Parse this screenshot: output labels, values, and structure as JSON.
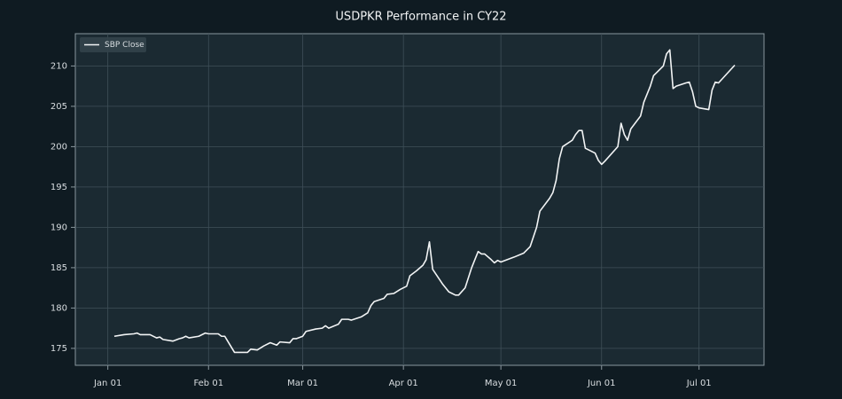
{
  "chart_data": {
    "type": "line",
    "title": "USDPKR Performance in CY22",
    "x": [
      "01-03",
      "01-06",
      "01-09",
      "01-10",
      "01-11",
      "01-14",
      "01-16",
      "01-17",
      "01-18",
      "01-21",
      "01-23",
      "01-24",
      "01-25",
      "01-26",
      "01-29",
      "01-31",
      "02-01",
      "02-04",
      "02-05",
      "02-06",
      "02-09",
      "02-13",
      "02-14",
      "02-16",
      "02-18",
      "02-20",
      "02-22",
      "02-23",
      "02-26",
      "02-27",
      "02-28",
      "03-01",
      "03-02",
      "03-05",
      "03-07",
      "03-08",
      "03-09",
      "03-12",
      "03-13",
      "03-15",
      "03-16",
      "03-19",
      "03-21",
      "03-22",
      "03-23",
      "03-26",
      "03-27",
      "03-29",
      "03-31",
      "04-02",
      "04-03",
      "04-05",
      "04-07",
      "04-08",
      "04-09",
      "04-10",
      "04-13",
      "04-15",
      "04-17",
      "04-18",
      "04-20",
      "04-22",
      "04-24",
      "04-25",
      "04-26",
      "04-28",
      "04-29",
      "04-30",
      "05-01",
      "05-05",
      "05-08",
      "05-10",
      "05-12",
      "05-13",
      "05-16",
      "05-17",
      "05-18",
      "05-19",
      "05-20",
      "05-23",
      "05-24",
      "05-25",
      "05-26",
      "05-27",
      "05-30",
      "05-31",
      "06-01",
      "06-02",
      "06-06",
      "06-07",
      "06-08",
      "06-09",
      "06-10",
      "06-13",
      "06-14",
      "06-16",
      "06-17",
      "06-20",
      "06-21",
      "06-22",
      "06-23",
      "06-24",
      "06-27",
      "06-28",
      "06-29",
      "06-30",
      "07-01",
      "07-04",
      "07-05",
      "07-06",
      "07-07",
      "07-12"
    ],
    "series": [
      {
        "name": "SBP Close",
        "color": "#f2f4f5",
        "values": [
          176.5,
          176.7,
          176.8,
          176.9,
          176.7,
          176.7,
          176.3,
          176.4,
          176.1,
          175.9,
          176.2,
          176.3,
          176.5,
          176.3,
          176.5,
          176.9,
          176.8,
          176.8,
          176.5,
          176.5,
          174.5,
          174.5,
          174.9,
          174.8,
          175.3,
          175.7,
          175.4,
          175.8,
          175.7,
          176.2,
          176.2,
          176.5,
          177.1,
          177.4,
          177.5,
          177.8,
          177.5,
          178.0,
          178.6,
          178.6,
          178.5,
          178.9,
          179.4,
          180.3,
          180.8,
          181.2,
          181.7,
          181.8,
          182.3,
          182.7,
          184.0,
          184.6,
          185.3,
          186.0,
          188.2,
          184.8,
          183.0,
          182.0,
          181.6,
          181.6,
          182.5,
          185.0,
          187.0,
          186.7,
          186.7,
          186.0,
          185.6,
          185.9,
          185.7,
          186.3,
          186.8,
          187.6,
          190.0,
          192.0,
          193.6,
          194.3,
          195.8,
          198.5,
          200.0,
          200.8,
          201.5,
          202.0,
          202.0,
          199.8,
          199.2,
          198.3,
          197.8,
          198.2,
          200.0,
          202.9,
          201.5,
          200.8,
          202.2,
          203.8,
          205.5,
          207.5,
          208.8,
          210.0,
          211.5,
          212.0,
          207.2,
          207.5,
          207.9,
          208.0,
          206.8,
          205.0,
          204.8,
          204.6,
          207.0,
          208.0,
          207.9,
          210.1
        ]
      }
    ],
    "xlim": [
      "12-22",
      "07-21"
    ],
    "xticks": [
      {
        "value": "01-01",
        "label": "Jan 01"
      },
      {
        "value": "02-01",
        "label": "Feb 01"
      },
      {
        "value": "03-01",
        "label": "Mar 01"
      },
      {
        "value": "04-01",
        "label": "Apr 01"
      },
      {
        "value": "05-01",
        "label": "May 01"
      },
      {
        "value": "06-01",
        "label": "Jun 01"
      },
      {
        "value": "07-01",
        "label": "Jul 01"
      }
    ],
    "ylim": [
      172.9,
      214
    ],
    "yticks": [
      175,
      180,
      185,
      190,
      195,
      200,
      205,
      210
    ],
    "grid": true,
    "legend": "upper left"
  }
}
